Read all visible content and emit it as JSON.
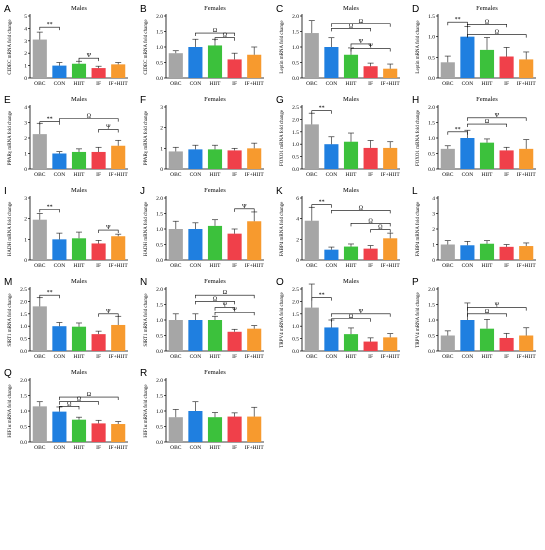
{
  "colors": {
    "OBC": "#a6a6a6",
    "CON": "#1f7fe0",
    "HIIT": "#3cc13c",
    "IF": "#f0404a",
    "IF+HIIT": "#f79a2e",
    "axis": "#000000"
  },
  "chart_data": [
    {
      "type": "bar",
      "panel": "A",
      "title": "Males",
      "ylabel": "CIDEC mRNA fold change",
      "categories": [
        "OBC",
        "CON",
        "HIIT",
        "IF",
        "IF+HIIT"
      ],
      "values": [
        3.1,
        1.0,
        1.15,
        0.8,
        1.1
      ],
      "errors": [
        0.6,
        0.25,
        0.2,
        0.15,
        0.15
      ],
      "ylim": [
        0,
        5
      ],
      "yticks": [
        "0",
        "1",
        "2",
        "3",
        "4",
        "5"
      ],
      "annotations": [
        {
          "text": "**",
          "from": 0,
          "to": 1,
          "level": 4.1
        },
        {
          "text": "Ψ",
          "from": 2,
          "to": 3,
          "level": 1.6
        }
      ]
    },
    {
      "type": "bar",
      "panel": "B",
      "title": "Females",
      "ylabel": "CIDEC mRNA fold change",
      "categories": [
        "OBC",
        "CON",
        "HIIT",
        "IF",
        "IF+HIIT"
      ],
      "values": [
        0.8,
        1.0,
        1.05,
        0.6,
        0.75
      ],
      "errors": [
        0.08,
        0.25,
        0.2,
        0.2,
        0.25
      ],
      "ylim": [
        0,
        2.0
      ],
      "yticks": [
        "0.0",
        "0.5",
        "1.0",
        "1.5",
        "2.0"
      ],
      "annotations": [
        {
          "text": "Ω",
          "from": 1,
          "to": 3,
          "level": 1.45
        },
        {
          "text": "Ω",
          "from": 2,
          "to": 3,
          "level": 1.3
        }
      ]
    },
    {
      "type": "bar",
      "panel": "C",
      "title": "Males",
      "ylabel": "Leptin mRNA fold change",
      "categories": [
        "OBC",
        "CON",
        "HIIT",
        "IF",
        "IF+HIIT"
      ],
      "values": [
        1.45,
        1.0,
        0.75,
        0.38,
        0.3
      ],
      "errors": [
        0.4,
        0.3,
        0.22,
        0.1,
        0.15
      ],
      "ylim": [
        0,
        2.0
      ],
      "yticks": [
        "0.0",
        "0.5",
        "1.0",
        "1.5",
        "2.0"
      ],
      "annotations": [
        {
          "text": "Ω",
          "from": 1,
          "to": 4,
          "level": 1.75
        },
        {
          "text": "Ω",
          "from": 1,
          "to": 3,
          "level": 1.6
        },
        {
          "text": "Ψ",
          "from": 2,
          "to": 3,
          "level": 1.1
        },
        {
          "text": "Ψ",
          "from": 2,
          "to": 4,
          "level": 0.95
        }
      ]
    },
    {
      "type": "bar",
      "panel": "D",
      "title": "Females",
      "ylabel": "Leptin mRNA fold change",
      "categories": [
        "OBC",
        "CON",
        "HIIT",
        "IF",
        "IF+HIIT"
      ],
      "values": [
        0.38,
        1.0,
        0.68,
        0.52,
        0.45
      ],
      "errors": [
        0.15,
        0.25,
        0.3,
        0.22,
        0.18
      ],
      "ylim": [
        0,
        1.5
      ],
      "yticks": [
        "0.0",
        "0.5",
        "1.0",
        "1.5"
      ],
      "annotations": [
        {
          "text": "**",
          "from": 0,
          "to": 1,
          "level": 1.35
        },
        {
          "text": "Ω",
          "from": 1,
          "to": 3,
          "level": 1.3
        },
        {
          "text": "Ω",
          "from": 1,
          "to": 4,
          "level": 1.05
        }
      ]
    },
    {
      "type": "bar",
      "panel": "E",
      "title": "Males",
      "ylabel": "PPARγ mRNA fold change",
      "categories": [
        "OBC",
        "CON",
        "HIIT",
        "IF",
        "IF+HIIT"
      ],
      "values": [
        2.25,
        1.0,
        1.1,
        1.1,
        1.5
      ],
      "errors": [
        0.7,
        0.12,
        0.2,
        0.3,
        0.35
      ],
      "ylim": [
        0,
        4
      ],
      "yticks": [
        "0",
        "1",
        "2",
        "3",
        "4"
      ],
      "annotations": [
        {
          "text": "**",
          "from": 0,
          "to": 1,
          "level": 3.05
        },
        {
          "text": "Ω",
          "from": 1,
          "to": 4,
          "level": 3.25
        },
        {
          "text": "Ψ",
          "from": 3,
          "to": 4,
          "level": 2.55
        }
      ]
    },
    {
      "type": "bar",
      "panel": "F",
      "title": "Females",
      "ylabel": "PPARγ mRNA fold change",
      "categories": [
        "OBC",
        "CON",
        "HIIT",
        "IF",
        "IF+HIIT"
      ],
      "values": [
        0.85,
        0.95,
        0.95,
        0.9,
        1.0
      ],
      "errors": [
        0.2,
        0.2,
        0.2,
        0.1,
        0.25
      ],
      "ylim": [
        0,
        3
      ],
      "yticks": [
        "0",
        "1",
        "2",
        "3"
      ],
      "annotations": []
    },
    {
      "type": "bar",
      "panel": "G",
      "title": "Males",
      "ylabel": "FOXO1 mRNA fold change",
      "categories": [
        "OBC",
        "CON",
        "HIIT",
        "IF",
        "IF+HIIT"
      ],
      "values": [
        1.8,
        1.0,
        1.1,
        0.85,
        0.85
      ],
      "errors": [
        0.45,
        0.3,
        0.35,
        0.3,
        0.25
      ],
      "ylim": [
        0,
        2.5
      ],
      "yticks": [
        "0.0",
        "0.5",
        "1.0",
        "1.5",
        "2.0",
        "2.5"
      ],
      "annotations": [
        {
          "text": "**",
          "from": 0,
          "to": 1,
          "level": 2.35
        }
      ]
    },
    {
      "type": "bar",
      "panel": "H",
      "title": "Females",
      "ylabel": "FOXO1 mRNA fold change",
      "categories": [
        "OBC",
        "CON",
        "HIIT",
        "IF",
        "IF+HIIT"
      ],
      "values": [
        0.65,
        1.0,
        0.85,
        0.6,
        0.65
      ],
      "errors": [
        0.1,
        0.25,
        0.12,
        0.1,
        0.3
      ],
      "ylim": [
        0,
        2.0
      ],
      "yticks": [
        "0.0",
        "0.5",
        "1.0",
        "1.5",
        "2.0"
      ],
      "annotations": [
        {
          "text": "**",
          "from": 0,
          "to": 1,
          "level": 1.2
        },
        {
          "text": "Ω",
          "from": 1,
          "to": 3,
          "level": 1.45
        },
        {
          "text": "Ψ",
          "from": 1,
          "to": 4,
          "level": 1.65
        }
      ]
    },
    {
      "type": "bar",
      "panel": "I",
      "title": "Males",
      "ylabel": "HADH mRNA fold change",
      "categories": [
        "OBC",
        "CON",
        "HIIT",
        "IF",
        "IF+HIIT"
      ],
      "values": [
        1.95,
        1.0,
        1.05,
        0.8,
        1.15
      ],
      "errors": [
        0.3,
        0.3,
        0.3,
        0.15,
        0.1
      ],
      "ylim": [
        0,
        3
      ],
      "yticks": [
        "0",
        "1",
        "2",
        "3"
      ],
      "annotations": [
        {
          "text": "**",
          "from": 0,
          "to": 1,
          "level": 2.45
        },
        {
          "text": "Ψ",
          "from": 3,
          "to": 4,
          "level": 1.45
        }
      ]
    },
    {
      "type": "bar",
      "panel": "J",
      "title": "Females",
      "ylabel": "HADH mRNA fold change",
      "categories": [
        "OBC",
        "CON",
        "HIIT",
        "IF",
        "IF+HIIT"
      ],
      "values": [
        1.0,
        1.0,
        1.1,
        0.85,
        1.25
      ],
      "errors": [
        0.25,
        0.2,
        0.2,
        0.15,
        0.3
      ],
      "ylim": [
        0,
        2.0
      ],
      "yticks": [
        "0.0",
        "0.5",
        "1.0",
        "1.5",
        "2.0"
      ],
      "annotations": [
        {
          "text": "Ψ",
          "from": 3,
          "to": 4,
          "level": 1.65
        }
      ]
    },
    {
      "type": "bar",
      "panel": "K",
      "title": "Males",
      "ylabel": "FABP4 mRNA fold change",
      "categories": [
        "OBC",
        "CON",
        "HIIT",
        "IF",
        "IF+HIIT"
      ],
      "values": [
        3.8,
        1.0,
        1.3,
        1.1,
        2.1
      ],
      "errors": [
        1.3,
        0.25,
        0.25,
        0.3,
        0.5
      ],
      "ylim": [
        0,
        6
      ],
      "yticks": [
        "0",
        "2",
        "4",
        "6"
      ],
      "annotations": [
        {
          "text": "**",
          "from": 0,
          "to": 1,
          "level": 5.35
        },
        {
          "text": "Ω",
          "from": 1,
          "to": 4,
          "level": 4.8
        },
        {
          "text": "Ω",
          "from": 2,
          "to": 4,
          "level": 3.55
        },
        {
          "text": "Ω",
          "from": 3,
          "to": 4,
          "level": 2.95
        }
      ]
    },
    {
      "type": "bar",
      "panel": "L",
      "title": "",
      "ylabel": "FABP4 mRNA fold change",
      "categories": [
        "OBC",
        "CON",
        "HIIT",
        "IF",
        "IF+HIIT"
      ],
      "values": [
        1.0,
        0.95,
        1.05,
        0.85,
        0.9
      ],
      "errors": [
        0.25,
        0.25,
        0.2,
        0.15,
        0.2
      ],
      "ylim": [
        0,
        4
      ],
      "yticks": [
        "0",
        "1",
        "2",
        "3",
        "4"
      ],
      "annotations": []
    },
    {
      "type": "bar",
      "panel": "M",
      "title": "Males",
      "ylabel": "SIRT1 mRNA fold change",
      "categories": [
        "OBC",
        "CON",
        "HIIT",
        "IF",
        "IF+HIIT"
      ],
      "values": [
        1.8,
        1.0,
        0.98,
        0.68,
        1.05
      ],
      "errors": [
        0.35,
        0.15,
        0.15,
        0.12,
        0.35
      ],
      "ylim": [
        0,
        2.5
      ],
      "yticks": [
        "0.0",
        "0.5",
        "1.0",
        "1.5",
        "2.0",
        "2.5"
      ],
      "annotations": [
        {
          "text": "**",
          "from": 0,
          "to": 1,
          "level": 2.25
        },
        {
          "text": "Ψ",
          "from": 3,
          "to": 4,
          "level": 1.5
        }
      ]
    },
    {
      "type": "bar",
      "panel": "N",
      "title": "Females",
      "ylabel": "SIRT1 mRNA fold change",
      "categories": [
        "OBC",
        "CON",
        "HIIT",
        "IF",
        "IF+HIIT"
      ],
      "values": [
        1.0,
        1.0,
        1.0,
        0.62,
        0.72
      ],
      "errors": [
        0.2,
        0.2,
        0.12,
        0.08,
        0.1
      ],
      "ylim": [
        0,
        2.0
      ],
      "yticks": [
        "0.0",
        "0.5",
        "1.0",
        "1.5",
        "2.0"
      ],
      "annotations": [
        {
          "text": "Ω",
          "from": 1,
          "to": 4,
          "level": 1.8
        },
        {
          "text": "Ω",
          "from": 1,
          "to": 3,
          "level": 1.6
        },
        {
          "text": "Ψ",
          "from": 2,
          "to": 3,
          "level": 1.4
        },
        {
          "text": "Ψ",
          "from": 2,
          "to": 4,
          "level": 1.25
        }
      ]
    },
    {
      "type": "bar",
      "panel": "O",
      "title": "Males",
      "ylabel": "TRPV4 mRNA fold change",
      "categories": [
        "OBC",
        "CON",
        "HIIT",
        "IF",
        "IF+HIIT"
      ],
      "values": [
        1.75,
        0.95,
        0.68,
        0.38,
        0.55
      ],
      "errors": [
        0.95,
        0.3,
        0.25,
        0.15,
        0.15
      ],
      "ylim": [
        0,
        2.5
      ],
      "yticks": [
        "0.0",
        "0.5",
        "1.0",
        "1.5",
        "2.0",
        "2.5"
      ],
      "annotations": [
        {
          "text": "**",
          "from": 0,
          "to": 1,
          "level": 2.15
        },
        {
          "text": "Ω",
          "from": 1,
          "to": 3,
          "level": 1.3
        },
        {
          "text": "Ψ",
          "from": 1,
          "to": 4,
          "level": 1.5
        }
      ]
    },
    {
      "type": "bar",
      "panel": "P",
      "title": "",
      "ylabel": "TRPV4 mRNA fold change",
      "categories": [
        "OBC",
        "CON",
        "HIIT",
        "IF",
        "IF+HIIT"
      ],
      "values": [
        0.5,
        1.0,
        0.72,
        0.42,
        0.5
      ],
      "errors": [
        0.15,
        0.55,
        0.3,
        0.15,
        0.25
      ],
      "ylim": [
        0,
        2.0
      ],
      "yticks": [
        "0.0",
        "0.5",
        "1.0",
        "1.5",
        "2.0"
      ],
      "annotations": [
        {
          "text": "Ω",
          "from": 1,
          "to": 3,
          "level": 1.2
        },
        {
          "text": "Ψ",
          "from": 1,
          "to": 4,
          "level": 1.4
        }
      ]
    },
    {
      "type": "bar",
      "panel": "Q",
      "title": "Males",
      "ylabel": "HIF1α mRNA fold change",
      "categories": [
        "OBC",
        "CON",
        "HIIT",
        "IF",
        "IF+HIIT"
      ],
      "values": [
        1.15,
        0.98,
        0.72,
        0.6,
        0.58
      ],
      "errors": [
        0.15,
        0.15,
        0.08,
        0.1,
        0.08
      ],
      "ylim": [
        0,
        2.0
      ],
      "yticks": [
        "0.0",
        "0.5",
        "1.0",
        "1.5",
        "2.0"
      ],
      "annotations": [
        {
          "text": "Ω",
          "from": 1,
          "to": 4,
          "level": 1.45
        },
        {
          "text": "Ω",
          "from": 1,
          "to": 3,
          "level": 1.3
        },
        {
          "text": "Ω",
          "from": 1,
          "to": 2,
          "level": 1.15
        }
      ]
    },
    {
      "type": "bar",
      "panel": "R",
      "title": "Females",
      "ylabel": "HIF1α mRNA fold change",
      "categories": [
        "OBC",
        "CON",
        "HIIT",
        "IF",
        "IF+HIIT"
      ],
      "values": [
        0.8,
        1.0,
        0.8,
        0.82,
        0.82
      ],
      "errors": [
        0.25,
        0.3,
        0.15,
        0.12,
        0.3
      ],
      "ylim": [
        0,
        2.0
      ],
      "yticks": [
        "0.0",
        "0.5",
        "1.0",
        "1.5",
        "2.0"
      ],
      "annotations": []
    }
  ]
}
